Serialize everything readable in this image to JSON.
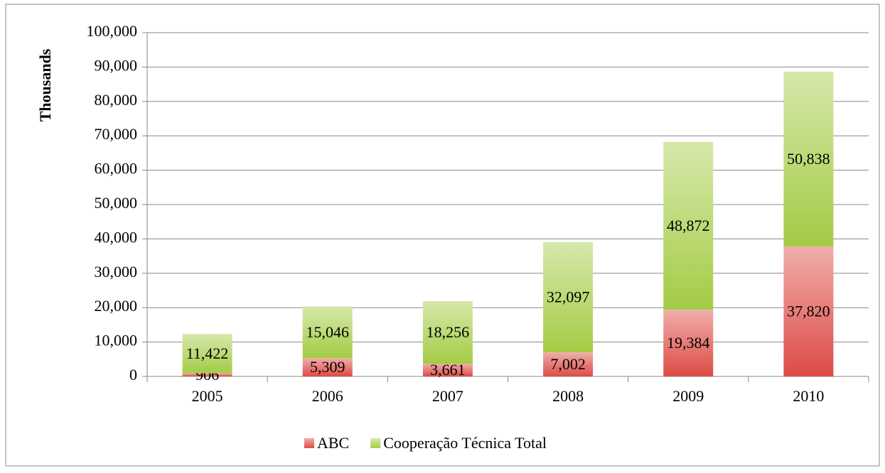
{
  "chart_data": {
    "type": "stacked_bar",
    "y_label": "Thousands",
    "categories": [
      "2005",
      "2006",
      "2007",
      "2008",
      "2009",
      "2010"
    ],
    "series": [
      {
        "name": "ABC",
        "color": "#dd4b45",
        "values": [
          906,
          5309,
          3661,
          7002,
          19384,
          37820
        ],
        "value_labels": [
          "906",
          "5,309",
          "3,661",
          "7,002",
          "19,384",
          "37,820"
        ]
      },
      {
        "name": "Cooperação Técnica Total",
        "color": "#a3cc45",
        "values": [
          11422,
          15046,
          18256,
          32097,
          48872,
          50838
        ],
        "value_labels": [
          "11,422",
          "15,046",
          "18,256",
          "32,097",
          "48,872",
          "50,838"
        ]
      }
    ],
    "ylim": [
      0,
      100000
    ],
    "yticks": [
      0,
      {
        "value": 10000,
        "label": "10,000"
      },
      {
        "value": 20000,
        "label": "20,000"
      },
      {
        "value": 30000,
        "label": "30,000"
      },
      {
        "value": 40000,
        "label": "40,000"
      },
      {
        "value": 50000,
        "label": "50,000"
      },
      {
        "value": 60000,
        "label": "60,000"
      },
      {
        "value": 70000,
        "label": "70,000"
      },
      {
        "value": 80000,
        "label": "80,000"
      },
      {
        "value": 90000,
        "label": "90,000"
      },
      {
        "value": 100000,
        "label": "100,000"
      }
    ],
    "grid": true,
    "legend": "bottom"
  }
}
